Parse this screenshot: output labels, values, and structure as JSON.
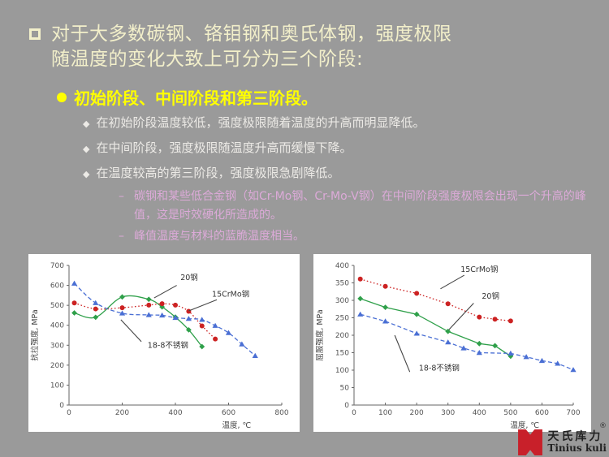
{
  "slide": {
    "title_line1": "对于大多数碳钢、铬钼钢和奥氏体钢，强度极限",
    "title_line2": "随温度的变化大致上可分为三个阶段:",
    "subtitle": "初始阶段、中间阶段和第三阶段。",
    "diamond_bullets": [
      "在初始阶段温度较低，强度极限随着温度的升高而明显降低。",
      "在中间阶段，强度极限随温度升高而缓慢下降。",
      "在温度较高的第三阶段，强度极限急剧降低。"
    ],
    "dash_bullets": [
      "碳钢和某些低合金钢（如Cr-Mo钢、Cr-Mo-V钢）在中间阶段强度极限会出现一个升高的峰值，这是时效硬化所造成的。",
      "峰值温度与材料的蓝脆温度相当。"
    ],
    "glyphs": {
      "diamond": "◆",
      "dash": "–"
    },
    "colors": {
      "background": "#9a9a9a",
      "title": "#f2efca",
      "subtitle": "#ffff00",
      "body": "#eceae6",
      "sub_bullet": "#dcaad8"
    }
  },
  "logo": {
    "cn": "天氏库力",
    "en": "Tinius kuli",
    "registered": "®",
    "icon_color": "#c8202a"
  },
  "chart_data": [
    {
      "type": "line",
      "ylabel": "抗拉强度, MPa",
      "xlabel": "温度, ℃",
      "xlim": [
        0,
        800
      ],
      "xticks": [
        0,
        200,
        400,
        600,
        800
      ],
      "xlabel_x": 630,
      "ylim": [
        0,
        700
      ],
      "yticks": [
        0,
        100,
        200,
        300,
        400,
        500,
        600,
        700
      ],
      "grid": false,
      "legend": "inline-annotations",
      "series": [
        {
          "name": "20钢",
          "color": "#2fa04a",
          "style": "solid",
          "marker": "diamond",
          "smooth": true,
          "points": [
            [
              20,
              462
            ],
            [
              100,
              440
            ],
            [
              200,
              542
            ],
            [
              300,
              530
            ],
            [
              350,
              492
            ],
            [
              400,
              441
            ],
            [
              450,
              377
            ],
            [
              500,
              293
            ]
          ]
        },
        {
          "name": "15CrMo钢",
          "color": "#cc2222",
          "style": "dotted",
          "marker": "circle",
          "smooth": true,
          "points": [
            [
              20,
              512
            ],
            [
              100,
              482
            ],
            [
              200,
              488
            ],
            [
              300,
              501
            ],
            [
              350,
              508
            ],
            [
              400,
              501
            ],
            [
              450,
              470
            ],
            [
              500,
              397
            ],
            [
              550,
              331
            ]
          ]
        },
        {
          "name": "18-8不锈钢",
          "color": "#4a6fd4",
          "style": "dashed",
          "marker": "triangle",
          "smooth": true,
          "points": [
            [
              20,
              610
            ],
            [
              100,
              512
            ],
            [
              200,
              460
            ],
            [
              300,
              452
            ],
            [
              350,
              450
            ],
            [
              400,
              438
            ],
            [
              450,
              433
            ],
            [
              500,
              428
            ],
            [
              550,
              398
            ],
            [
              600,
              362
            ],
            [
              650,
              305
            ],
            [
              700,
              247
            ]
          ]
        }
      ],
      "annotations": [
        {
          "text": "20钢",
          "x": 452,
          "y": 638,
          "line": [
            [
              405,
              600
            ],
            [
              320,
              537
            ]
          ]
        },
        {
          "text": "15CrMo钢",
          "x": 608,
          "y": 556,
          "line": [
            [
              556,
              528
            ],
            [
              450,
              472
            ]
          ]
        },
        {
          "text": "18-8不锈钢",
          "x": 372,
          "y": 300,
          "line": [
            [
              195,
              428
            ],
            [
              272,
              318
            ]
          ]
        }
      ]
    },
    {
      "type": "line",
      "ylabel": "屈服强度, MPa",
      "xlabel": "温度, ℃",
      "xlim": [
        0,
        700
      ],
      "xticks": [
        0,
        100,
        200,
        300,
        400,
        500,
        600,
        700
      ],
      "xlabel_x": 545,
      "ylim": [
        0,
        400
      ],
      "yticks": [
        0,
        50,
        100,
        150,
        200,
        250,
        300,
        350,
        400
      ],
      "grid": false,
      "legend": "inline-annotations",
      "series": [
        {
          "name": "15CrMo钢",
          "color": "#cc2222",
          "style": "dotted",
          "marker": "circle",
          "smooth": false,
          "points": [
            [
              20,
              361
            ],
            [
              100,
              340
            ],
            [
              200,
              320
            ],
            [
              300,
              290
            ],
            [
              400,
              252
            ],
            [
              450,
              246
            ],
            [
              500,
              241
            ]
          ]
        },
        {
          "name": "20钢",
          "color": "#2fa04a",
          "style": "solid",
          "marker": "diamond",
          "smooth": false,
          "points": [
            [
              20,
              305
            ],
            [
              100,
              280
            ],
            [
              200,
              260
            ],
            [
              300,
              211
            ],
            [
              400,
              176
            ],
            [
              450,
              170
            ],
            [
              500,
              140
            ]
          ]
        },
        {
          "name": "18-8不锈钢",
          "color": "#4a6fd4",
          "style": "dashed",
          "marker": "triangle",
          "smooth": false,
          "points": [
            [
              20,
              260
            ],
            [
              100,
              240
            ],
            [
              200,
              205
            ],
            [
              300,
              180
            ],
            [
              350,
              163
            ],
            [
              400,
              150
            ],
            [
              500,
              148
            ],
            [
              550,
              138
            ],
            [
              600,
              127
            ],
            [
              650,
              119
            ],
            [
              700,
              101
            ]
          ]
        }
      ],
      "annotations": [
        {
          "text": "15CrMo钢",
          "x": 400,
          "y": 388,
          "line": [
            [
              352,
              372
            ],
            [
              276,
              333
            ]
          ]
        },
        {
          "text": "20钢",
          "x": 436,
          "y": 312,
          "line": [
            [
              382,
              292
            ],
            [
              303,
              216
            ]
          ]
        },
        {
          "text": "18-8不锈钢",
          "x": 272,
          "y": 106,
          "line": [
            [
              130,
              200
            ],
            [
              178,
              95
            ]
          ]
        }
      ]
    }
  ]
}
